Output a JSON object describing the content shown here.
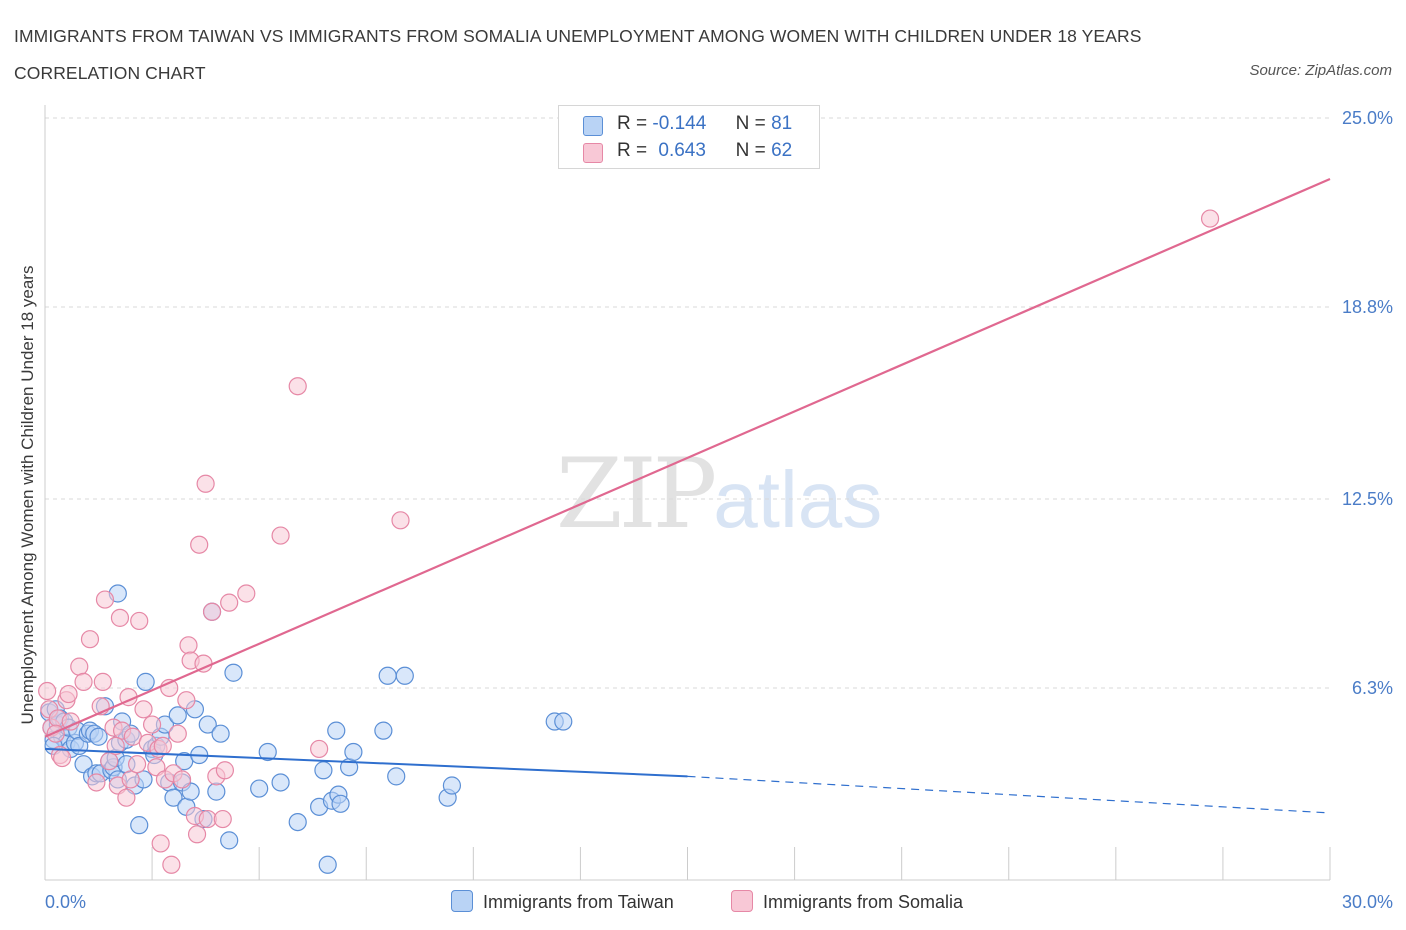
{
  "title": "IMMIGRANTS FROM TAIWAN VS IMMIGRANTS FROM SOMALIA UNEMPLOYMENT AMONG WOMEN WITH CHILDREN UNDER 18 YEARS CORRELATION CHART",
  "source": "Source: ZipAtlas.com",
  "watermark": {
    "zip": "ZIP",
    "atlas": "atlas"
  },
  "legend": {
    "r_label": "R =",
    "n_label": "N =",
    "taiwan": {
      "r": "-0.144",
      "n": "81"
    },
    "somalia": {
      "r": "0.643",
      "n": "62"
    }
  },
  "colors": {
    "taiwan_fill": "#b9d3f5",
    "taiwan_stroke": "#5b8fd6",
    "taiwan_line": "#2f6fce",
    "somalia_fill": "#f8c8d6",
    "somalia_stroke": "#e688a6",
    "somalia_line": "#e06890",
    "tick_text": "#4a7cc7",
    "grid": "#d9d9d9"
  },
  "chart_data": {
    "type": "scatter",
    "title": "IMMIGRANTS FROM TAIWAN VS IMMIGRANTS FROM SOMALIA UNEMPLOYMENT AMONG WOMEN WITH CHILDREN UNDER 18 YEARS CORRELATION CHART",
    "xlabel": "",
    "ylabel": "Unemployment Among Women with Children Under 18 years",
    "xlim": [
      0,
      30
    ],
    "ylim": [
      0,
      25
    ],
    "x_ticks": [
      "0.0%",
      "30.0%"
    ],
    "y_ticks": [
      {
        "value": 6.3,
        "label": "6.3%"
      },
      {
        "value": 12.5,
        "label": "12.5%"
      },
      {
        "value": 18.8,
        "label": "18.8%"
      },
      {
        "value": 25.0,
        "label": "25.0%"
      }
    ],
    "grid": "horizontal dashed",
    "legend_placement": "bottom",
    "series": [
      {
        "name": "Immigrants from Taiwan",
        "r": -0.144,
        "n": 81,
        "trend": {
          "x0": 0,
          "y0": 4.3,
          "x1": 15,
          "y1": 3.4,
          "dashed_to_x": 30,
          "dashed_to_y": 2.2
        },
        "points": [
          [
            0.1,
            5.5
          ],
          [
            0.15,
            5.0
          ],
          [
            0.2,
            4.6
          ],
          [
            0.25,
            5.6
          ],
          [
            0.3,
            5.1
          ],
          [
            0.35,
            5.3
          ],
          [
            0.4,
            4.7
          ],
          [
            0.45,
            5.2
          ],
          [
            0.5,
            4.5
          ],
          [
            0.55,
            5.0
          ],
          [
            0.6,
            4.3
          ],
          [
            0.7,
            4.5
          ],
          [
            0.75,
            4.9
          ],
          [
            0.8,
            4.4
          ],
          [
            0.9,
            3.8
          ],
          [
            1.0,
            4.8
          ],
          [
            1.05,
            4.9
          ],
          [
            1.1,
            3.4
          ],
          [
            1.15,
            4.8
          ],
          [
            1.2,
            3.5
          ],
          [
            1.3,
            3.5
          ],
          [
            1.4,
            5.7
          ],
          [
            1.5,
            3.9
          ],
          [
            1.55,
            3.6
          ],
          [
            1.6,
            3.7
          ],
          [
            1.65,
            4.0
          ],
          [
            1.7,
            3.3
          ],
          [
            1.7,
            9.4
          ],
          [
            1.75,
            4.5
          ],
          [
            1.8,
            5.2
          ],
          [
            1.9,
            4.6
          ],
          [
            1.9,
            3.8
          ],
          [
            2.0,
            4.8
          ],
          [
            2.1,
            3.1
          ],
          [
            2.2,
            1.8
          ],
          [
            2.3,
            3.3
          ],
          [
            2.35,
            6.5
          ],
          [
            2.5,
            4.3
          ],
          [
            2.55,
            4.1
          ],
          [
            2.6,
            4.4
          ],
          [
            2.7,
            4.7
          ],
          [
            2.8,
            5.1
          ],
          [
            2.9,
            3.2
          ],
          [
            3.0,
            2.7
          ],
          [
            3.1,
            5.4
          ],
          [
            3.2,
            3.2
          ],
          [
            3.25,
            3.9
          ],
          [
            3.3,
            2.4
          ],
          [
            3.4,
            2.9
          ],
          [
            3.5,
            5.6
          ],
          [
            3.6,
            4.1
          ],
          [
            3.7,
            2.0
          ],
          [
            3.8,
            5.1
          ],
          [
            3.9,
            8.8
          ],
          [
            4.0,
            2.9
          ],
          [
            4.1,
            4.8
          ],
          [
            4.3,
            1.3
          ],
          [
            4.4,
            6.8
          ],
          [
            5.0,
            3.0
          ],
          [
            5.2,
            4.2
          ],
          [
            5.5,
            3.2
          ],
          [
            5.9,
            1.9
          ],
          [
            6.4,
            2.4
          ],
          [
            6.5,
            3.6
          ],
          [
            6.6,
            0.5
          ],
          [
            6.7,
            2.6
          ],
          [
            6.8,
            4.9
          ],
          [
            6.85,
            2.8
          ],
          [
            6.9,
            2.5
          ],
          [
            7.1,
            3.7
          ],
          [
            7.2,
            4.2
          ],
          [
            7.9,
            4.9
          ],
          [
            8.0,
            6.7
          ],
          [
            8.2,
            3.4
          ],
          [
            8.4,
            6.7
          ],
          [
            9.4,
            2.7
          ],
          [
            9.5,
            3.1
          ],
          [
            11.9,
            5.2
          ],
          [
            12.1,
            5.2
          ],
          [
            0.2,
            4.4
          ],
          [
            1.25,
            4.7
          ]
        ]
      },
      {
        "name": "Immigrants from Somalia",
        "r": 0.643,
        "n": 62,
        "trend": {
          "x0": 0,
          "y0": 4.7,
          "x1": 30,
          "y1": 23.0
        },
        "points": [
          [
            0.05,
            6.2
          ],
          [
            0.1,
            5.6
          ],
          [
            0.15,
            5.0
          ],
          [
            0.3,
            5.3
          ],
          [
            0.35,
            4.1
          ],
          [
            0.4,
            4.0
          ],
          [
            0.5,
            5.9
          ],
          [
            0.55,
            6.1
          ],
          [
            0.6,
            5.2
          ],
          [
            0.8,
            7.0
          ],
          [
            0.9,
            6.5
          ],
          [
            1.05,
            7.9
          ],
          [
            1.2,
            3.2
          ],
          [
            1.3,
            5.7
          ],
          [
            1.35,
            6.5
          ],
          [
            1.4,
            9.2
          ],
          [
            1.5,
            3.9
          ],
          [
            1.6,
            5.0
          ],
          [
            1.7,
            3.1
          ],
          [
            1.75,
            8.6
          ],
          [
            1.8,
            4.9
          ],
          [
            1.9,
            2.7
          ],
          [
            1.95,
            6.0
          ],
          [
            2.0,
            3.3
          ],
          [
            2.05,
            4.7
          ],
          [
            2.2,
            8.5
          ],
          [
            2.3,
            5.6
          ],
          [
            2.4,
            4.5
          ],
          [
            2.5,
            5.1
          ],
          [
            2.6,
            3.7
          ],
          [
            2.65,
            4.3
          ],
          [
            2.7,
            1.2
          ],
          [
            2.75,
            4.4
          ],
          [
            2.8,
            3.3
          ],
          [
            2.9,
            6.3
          ],
          [
            2.95,
            0.5
          ],
          [
            3.0,
            3.5
          ],
          [
            3.1,
            4.8
          ],
          [
            3.2,
            3.3
          ],
          [
            3.3,
            5.9
          ],
          [
            3.35,
            7.7
          ],
          [
            3.4,
            7.2
          ],
          [
            3.5,
            2.1
          ],
          [
            3.55,
            1.5
          ],
          [
            3.6,
            11.0
          ],
          [
            3.7,
            7.1
          ],
          [
            3.75,
            13.0
          ],
          [
            3.8,
            2.0
          ],
          [
            3.9,
            8.8
          ],
          [
            4.0,
            3.4
          ],
          [
            4.15,
            2.0
          ],
          [
            4.2,
            3.6
          ],
          [
            4.3,
            9.1
          ],
          [
            4.7,
            9.4
          ],
          [
            5.5,
            11.3
          ],
          [
            5.9,
            16.2
          ],
          [
            6.4,
            4.3
          ],
          [
            8.3,
            11.8
          ],
          [
            1.65,
            4.4
          ],
          [
            2.15,
            3.8
          ],
          [
            0.25,
            4.8
          ],
          [
            27.2,
            21.7
          ]
        ]
      }
    ]
  },
  "bottom_legend": {
    "taiwan": "Immigrants from Taiwan",
    "somalia": "Immigrants from Somalia"
  }
}
